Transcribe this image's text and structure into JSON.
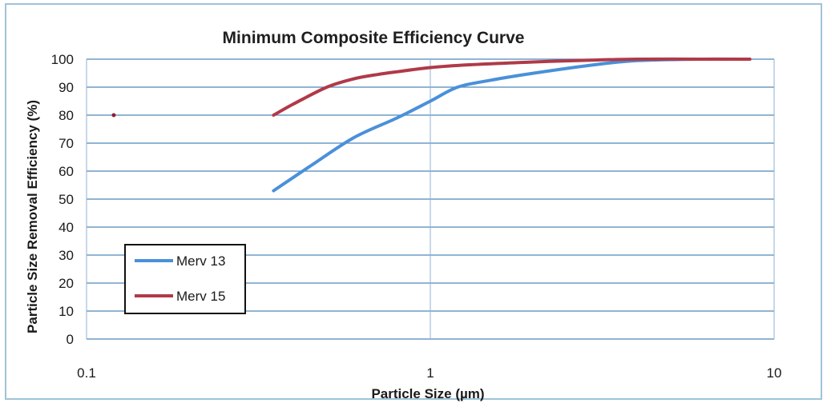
{
  "chart_data": {
    "type": "line",
    "title": "Minimum Composite Efficiency Curve",
    "xlabel": "Particle Size (µm)",
    "ylabel": "Particle Size Removal Efficiency (%)",
    "x_scale": "log",
    "xlim": [
      0.1,
      10
    ],
    "ylim": [
      0,
      100
    ],
    "x_ticks": [
      "0.1",
      "1",
      "10"
    ],
    "y_ticks": [
      "0",
      "10",
      "20",
      "30",
      "40",
      "50",
      "60",
      "70",
      "80",
      "90",
      "100"
    ],
    "grid": true,
    "legend_position": "bottom-left",
    "series": [
      {
        "name": "Merv 13",
        "color": "#4a90d9",
        "x": [
          0.35,
          0.45,
          0.6,
          0.8,
          1.0,
          1.2,
          1.5,
          2.0,
          3.0,
          4.0,
          6.0,
          8.5
        ],
        "y": [
          53,
          62,
          72,
          79,
          85,
          90,
          92.5,
          95,
          98,
          99.5,
          100,
          100
        ]
      },
      {
        "name": "Merv 15",
        "color": "#b03a48",
        "x": [
          0.35,
          0.4,
          0.5,
          0.6,
          0.7,
          0.8,
          1.0,
          1.3,
          2.0,
          3.0,
          4.0,
          6.0,
          8.5
        ],
        "y": [
          80,
          84,
          90,
          93,
          94.5,
          95.5,
          97,
          98,
          99,
          99.7,
          100,
          100,
          100
        ]
      }
    ],
    "annotations": [
      {
        "type": "point",
        "x": 0.12,
        "y": 80,
        "color": "#8a2030"
      }
    ]
  }
}
